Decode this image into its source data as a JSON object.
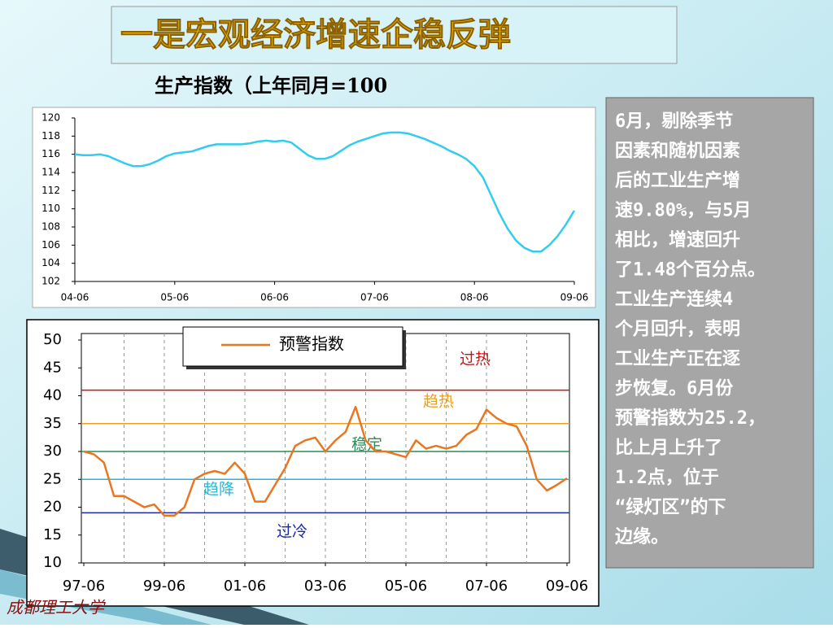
{
  "slide": {
    "title": "一是宏观经济增速企稳反弹",
    "subtitle": "生产指数（上年同月=100",
    "logo": "成都理工大学",
    "note_lines": [
      "6月，剔除季节",
      "因素和随机因素",
      "后的工业生产增",
      "速9.80%，与5月",
      "相比，增速回升",
      "了1.48个百分点。",
      "工业生产连续4",
      "个月回升，表明",
      "工业生产正在逐",
      "步恢复。6月份",
      "预警指数为25.2，",
      "比上月上升了",
      "1.2点，位于",
      "“绿灯区”的下",
      "边缘。"
    ]
  },
  "chart_data": [
    {
      "type": "line",
      "categories": [
        "04-06",
        null,
        null,
        null,
        null,
        null,
        null,
        null,
        null,
        null,
        null,
        null,
        "05-06",
        null,
        null,
        null,
        null,
        null,
        null,
        null,
        null,
        null,
        null,
        null,
        "06-06",
        null,
        null,
        null,
        null,
        null,
        null,
        null,
        null,
        null,
        null,
        null,
        "07-06",
        null,
        null,
        null,
        null,
        null,
        null,
        null,
        null,
        null,
        null,
        null,
        "08-06",
        null,
        null,
        null,
        null,
        null,
        null,
        null,
        null,
        null,
        null,
        null,
        "09-06"
      ],
      "series": [
        {
          "name": null,
          "color": "#33ccee",
          "values": [
            116,
            115.9,
            115.9,
            116,
            115.8,
            115.4,
            115,
            114.7,
            114.7,
            114.9,
            115.3,
            115.8,
            116.1,
            116.2,
            116.3,
            116.6,
            116.9,
            117.1,
            117.1,
            117.1,
            117.1,
            117.2,
            117.4,
            117.5,
            117.4,
            117.5,
            117.3,
            116.6,
            115.9,
            115.5,
            115.5,
            115.8,
            116.4,
            117,
            117.4,
            117.7,
            118,
            118.3,
            118.4,
            118.4,
            118.3,
            118,
            117.7,
            117.3,
            116.9,
            116.4,
            116,
            115.5,
            114.7,
            113.5,
            111.5,
            109.5,
            107.8,
            106.5,
            105.7,
            105.3,
            105.3,
            106,
            107,
            108.3,
            109.8
          ]
        }
      ],
      "ylim": [
        102,
        120
      ],
      "yticks": [
        102,
        104,
        106,
        108,
        110,
        112,
        114,
        116,
        118,
        120
      ],
      "grid": false
    },
    {
      "type": "line",
      "categories": [
        "97-06",
        null,
        null,
        null,
        null,
        null,
        null,
        null,
        "99-06",
        null,
        null,
        null,
        null,
        null,
        null,
        null,
        "01-06",
        null,
        null,
        null,
        null,
        null,
        null,
        null,
        "03-06",
        null,
        null,
        null,
        null,
        null,
        null,
        null,
        "05-06",
        null,
        null,
        null,
        null,
        null,
        null,
        null,
        "07-06",
        null,
        null,
        null,
        null,
        null,
        null,
        null,
        "09-06"
      ],
      "series": [
        {
          "name": "预警指数",
          "color": "#e87722",
          "values": [
            30,
            29.5,
            28,
            22,
            22,
            21,
            20,
            20.5,
            18.5,
            18.5,
            20,
            25,
            26,
            26.5,
            26,
            28,
            26,
            21,
            21,
            24,
            27,
            31,
            32,
            32.5,
            30,
            32,
            33.5,
            38,
            32,
            30,
            30,
            29.5,
            29,
            32,
            30.5,
            31,
            30.5,
            31,
            33,
            34,
            37.5,
            36,
            35,
            34.5,
            31,
            25,
            23,
            24,
            25.2
          ]
        }
      ],
      "reference_lines": [
        {
          "value": 41,
          "label": "过热",
          "color": "#cc1111"
        },
        {
          "value": 35,
          "label": "趋热",
          "color": "#e8a020"
        },
        {
          "value": 30,
          "label": "稳定",
          "color": "#2e8b57"
        },
        {
          "value": 25,
          "label": "趋降",
          "color": "#22b8d8"
        },
        {
          "value": 19,
          "label": "过冷",
          "color": "#1a2aa8"
        }
      ],
      "ylim": [
        10,
        50
      ],
      "yticks": [
        10,
        15,
        20,
        25,
        30,
        35,
        40,
        45,
        50
      ],
      "grid": true,
      "legend": "top"
    }
  ]
}
